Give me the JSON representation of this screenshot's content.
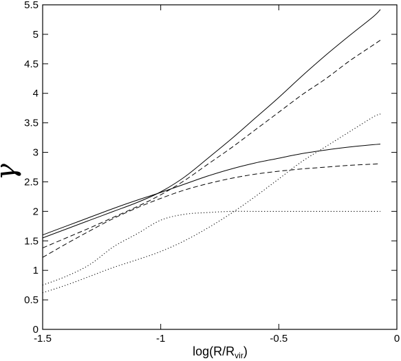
{
  "chart_data": {
    "type": "line",
    "title": "",
    "xlabel": {
      "main": "log(R/R",
      "sub": "vir",
      "close": ")"
    },
    "ylabel": "γ",
    "xlim": [
      -1.5,
      0
    ],
    "ylim": [
      0,
      5.5
    ],
    "xticks": [
      {
        "v": -1.5,
        "label": "-1.5"
      },
      {
        "v": -1,
        "label": "-1"
      },
      {
        "v": -0.5,
        "label": "-0.5"
      },
      {
        "v": 0,
        "label": "0"
      }
    ],
    "yticks": [
      {
        "v": 0,
        "label": "0"
      },
      {
        "v": 0.5,
        "label": "0.5"
      },
      {
        "v": 1,
        "label": "1"
      },
      {
        "v": 1.5,
        "label": "1.5"
      },
      {
        "v": 2,
        "label": "2"
      },
      {
        "v": 2.5,
        "label": "2.5"
      },
      {
        "v": 3,
        "label": "3"
      },
      {
        "v": 3.5,
        "label": "3.5"
      },
      {
        "v": 4,
        "label": "4"
      },
      {
        "v": 4.5,
        "label": "4.5"
      },
      {
        "v": 5,
        "label": "5"
      },
      {
        "v": 5.5,
        "label": "5.5"
      }
    ],
    "grid": false,
    "legend": "none",
    "series": [
      {
        "style": "solid",
        "x": [
          -1.5,
          -1.4,
          -1.3,
          -1.2,
          -1.1,
          -1.0,
          -0.9,
          -0.8,
          -0.7,
          -0.6,
          -0.5,
          -0.4,
          -0.3,
          -0.2,
          -0.1,
          -0.07
        ],
        "y": [
          1.55,
          1.7,
          1.85,
          2.0,
          2.15,
          2.33,
          2.58,
          2.9,
          3.23,
          3.58,
          3.93,
          4.3,
          4.65,
          4.98,
          5.3,
          5.42
        ]
      },
      {
        "style": "solid",
        "x": [
          -1.5,
          -1.4,
          -1.3,
          -1.2,
          -1.1,
          -1.0,
          -0.9,
          -0.8,
          -0.7,
          -0.6,
          -0.5,
          -0.4,
          -0.3,
          -0.2,
          -0.1,
          -0.07
        ],
        "y": [
          1.6,
          1.75,
          1.9,
          2.05,
          2.19,
          2.32,
          2.46,
          2.6,
          2.72,
          2.82,
          2.9,
          2.98,
          3.04,
          3.09,
          3.13,
          3.14
        ]
      },
      {
        "style": "dashed",
        "x": [
          -1.5,
          -1.4,
          -1.3,
          -1.2,
          -1.1,
          -1.0,
          -0.9,
          -0.8,
          -0.7,
          -0.6,
          -0.5,
          -0.4,
          -0.3,
          -0.2,
          -0.1,
          -0.07
        ],
        "y": [
          1.38,
          1.55,
          1.72,
          1.9,
          2.08,
          2.28,
          2.52,
          2.8,
          3.08,
          3.38,
          3.68,
          3.98,
          4.25,
          4.55,
          4.82,
          4.9
        ]
      },
      {
        "style": "dashed",
        "x": [
          -1.5,
          -1.4,
          -1.3,
          -1.2,
          -1.1,
          -1.0,
          -0.9,
          -0.8,
          -0.7,
          -0.6,
          -0.5,
          -0.4,
          -0.3,
          -0.2,
          -0.1,
          -0.07
        ],
        "y": [
          1.22,
          1.45,
          1.67,
          1.88,
          2.06,
          2.22,
          2.36,
          2.47,
          2.56,
          2.63,
          2.68,
          2.72,
          2.75,
          2.78,
          2.8,
          2.81
        ]
      },
      {
        "style": "dotted",
        "x": [
          -1.5,
          -1.4,
          -1.3,
          -1.2,
          -1.1,
          -1.0,
          -0.9,
          -0.8,
          -0.7,
          -0.6,
          -0.5,
          -0.4,
          -0.3,
          -0.2,
          -0.1,
          -0.07
        ],
        "y": [
          0.75,
          0.9,
          1.1,
          1.4,
          1.62,
          1.85,
          1.95,
          1.98,
          2.0,
          2.0,
          2.0,
          2.0,
          2.0,
          2.0,
          2.0,
          2.0
        ]
      },
      {
        "style": "dotted",
        "x": [
          -1.5,
          -1.4,
          -1.3,
          -1.2,
          -1.1,
          -1.0,
          -0.9,
          -0.8,
          -0.7,
          -0.6,
          -0.5,
          -0.4,
          -0.3,
          -0.2,
          -0.1,
          -0.07
        ],
        "y": [
          0.62,
          0.75,
          0.9,
          1.05,
          1.18,
          1.32,
          1.5,
          1.72,
          1.97,
          2.25,
          2.55,
          2.85,
          3.1,
          3.35,
          3.6,
          3.65
        ]
      }
    ]
  }
}
